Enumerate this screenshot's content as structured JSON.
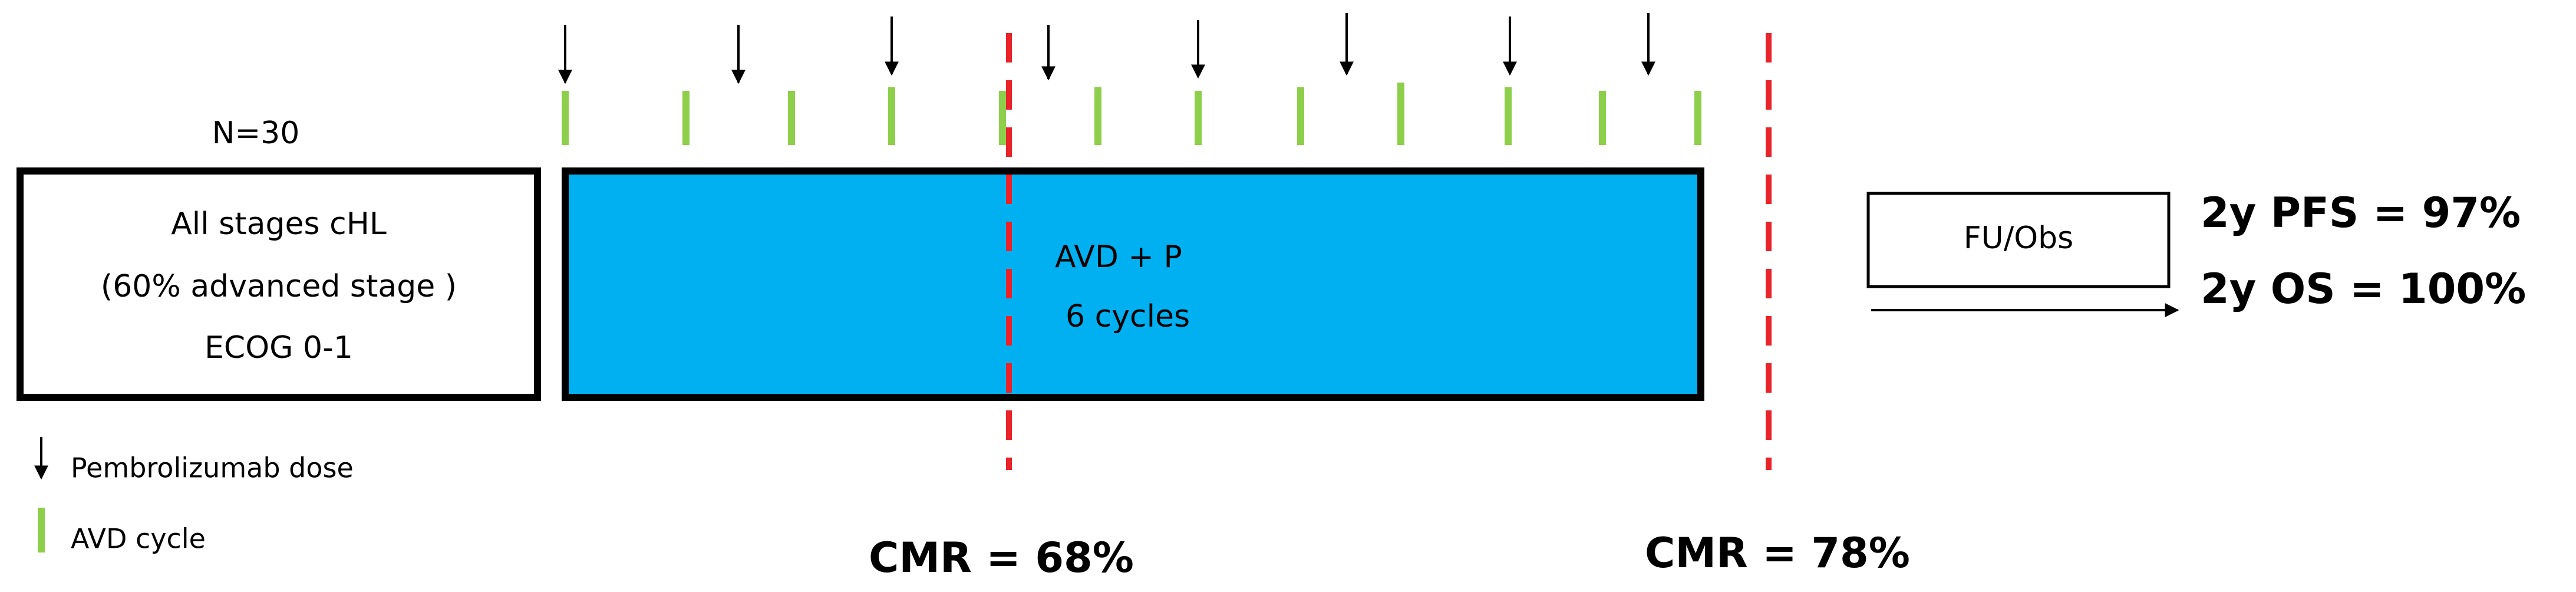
{
  "header": {
    "n": "N=30"
  },
  "population_box": {
    "lines": [
      "All stages cHL",
      "(60% advanced stage )",
      "ECOG 0-1"
    ]
  },
  "treatment_box": {
    "lines": [
      "AVD + P",
      "6 cycles"
    ]
  },
  "followup_box": {
    "label": "FU/Obs"
  },
  "outcomes": [
    "2y PFS = 97%",
    "2y OS = 100%"
  ],
  "legend": {
    "arrow": "Pembrolizumab dose",
    "tick": "AVD cycle"
  },
  "response": [
    "CMR = 68%",
    "CMR = 78%"
  ]
}
